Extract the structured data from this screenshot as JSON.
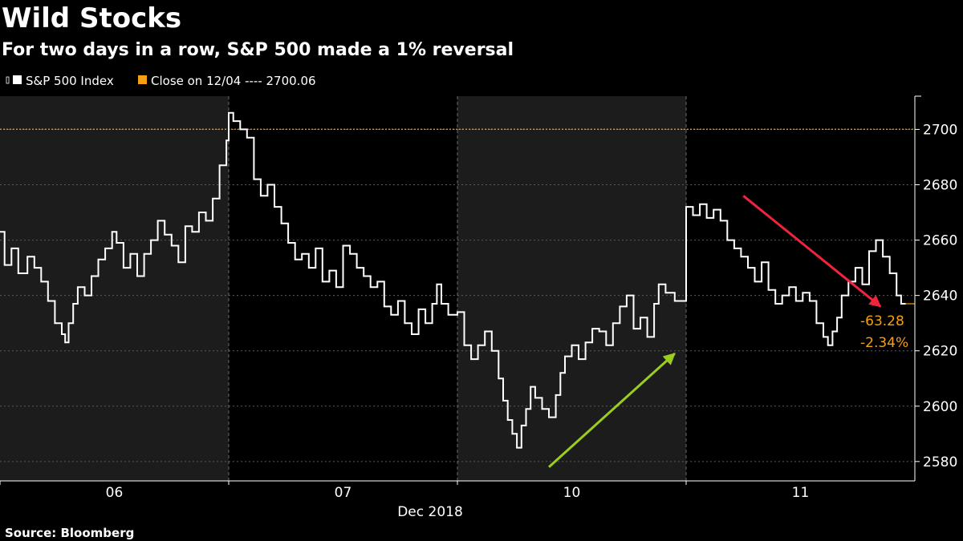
{
  "chart_data": {
    "type": "line",
    "title": "Wild Stocks",
    "subtitle": "For two days in a row, S&P 500 made a 1% reversal",
    "legend": [
      {
        "label": "S&P 500 Index",
        "color": "#ffffff"
      },
      {
        "label": "Close on 12/04 ---- 2700.06",
        "color": "#f5a012"
      }
    ],
    "reference_line": {
      "label": "Close on 12/04",
      "value": 2700.06,
      "color": "#f5a012"
    },
    "x_days": [
      "06",
      "07",
      "10",
      "11"
    ],
    "x_month_label": "Dec 2018",
    "x_range": [
      0,
      4
    ],
    "ylim": [
      2573,
      2712
    ],
    "y_ticks": [
      2580,
      2600,
      2620,
      2640,
      2660,
      2680,
      2700
    ],
    "series": [
      {
        "name": "S&P 500 Index",
        "color": "#ffffff",
        "points": [
          [
            0.0,
            2663
          ],
          [
            0.02,
            2651
          ],
          [
            0.05,
            2657
          ],
          [
            0.08,
            2648
          ],
          [
            0.12,
            2654
          ],
          [
            0.15,
            2650
          ],
          [
            0.18,
            2645
          ],
          [
            0.21,
            2638
          ],
          [
            0.24,
            2630
          ],
          [
            0.27,
            2626
          ],
          [
            0.285,
            2623
          ],
          [
            0.3,
            2630
          ],
          [
            0.32,
            2637
          ],
          [
            0.34,
            2643
          ],
          [
            0.37,
            2640
          ],
          [
            0.4,
            2647
          ],
          [
            0.43,
            2653
          ],
          [
            0.46,
            2657
          ],
          [
            0.49,
            2663
          ],
          [
            0.51,
            2659
          ],
          [
            0.54,
            2650
          ],
          [
            0.57,
            2655
          ],
          [
            0.6,
            2647
          ],
          [
            0.63,
            2655
          ],
          [
            0.66,
            2660
          ],
          [
            0.69,
            2667
          ],
          [
            0.72,
            2662
          ],
          [
            0.75,
            2658
          ],
          [
            0.78,
            2652
          ],
          [
            0.81,
            2665
          ],
          [
            0.84,
            2663
          ],
          [
            0.87,
            2670
          ],
          [
            0.9,
            2667
          ],
          [
            0.93,
            2675
          ],
          [
            0.96,
            2687
          ],
          [
            0.99,
            2696
          ],
          [
            1.0,
            2706
          ],
          [
            1.02,
            2703
          ],
          [
            1.05,
            2700
          ],
          [
            1.08,
            2697
          ],
          [
            1.11,
            2682
          ],
          [
            1.14,
            2676
          ],
          [
            1.17,
            2680
          ],
          [
            1.2,
            2672
          ],
          [
            1.23,
            2666
          ],
          [
            1.26,
            2659
          ],
          [
            1.29,
            2653
          ],
          [
            1.32,
            2655
          ],
          [
            1.35,
            2650
          ],
          [
            1.38,
            2657
          ],
          [
            1.41,
            2645
          ],
          [
            1.44,
            2649
          ],
          [
            1.47,
            2643
          ],
          [
            1.5,
            2658
          ],
          [
            1.53,
            2655
          ],
          [
            1.56,
            2650
          ],
          [
            1.59,
            2647
          ],
          [
            1.62,
            2643
          ],
          [
            1.65,
            2645
          ],
          [
            1.68,
            2636
          ],
          [
            1.71,
            2633
          ],
          [
            1.74,
            2638
          ],
          [
            1.77,
            2630
          ],
          [
            1.8,
            2626
          ],
          [
            1.83,
            2635
          ],
          [
            1.86,
            2630
          ],
          [
            1.89,
            2637
          ],
          [
            1.91,
            2644
          ],
          [
            1.93,
            2637
          ],
          [
            1.96,
            2633
          ],
          [
            2.0,
            2634
          ],
          [
            2.03,
            2622
          ],
          [
            2.06,
            2617
          ],
          [
            2.09,
            2622
          ],
          [
            2.12,
            2627
          ],
          [
            2.15,
            2620
          ],
          [
            2.18,
            2610
          ],
          [
            2.2,
            2602
          ],
          [
            2.22,
            2595
          ],
          [
            2.24,
            2590
          ],
          [
            2.26,
            2585
          ],
          [
            2.28,
            2593
          ],
          [
            2.3,
            2599
          ],
          [
            2.32,
            2607
          ],
          [
            2.34,
            2603
          ],
          [
            2.37,
            2599
          ],
          [
            2.4,
            2596
          ],
          [
            2.43,
            2604
          ],
          [
            2.45,
            2612
          ],
          [
            2.47,
            2618
          ],
          [
            2.5,
            2622
          ],
          [
            2.53,
            2617
          ],
          [
            2.56,
            2623
          ],
          [
            2.59,
            2628
          ],
          [
            2.62,
            2627
          ],
          [
            2.65,
            2622
          ],
          [
            2.68,
            2630
          ],
          [
            2.71,
            2636
          ],
          [
            2.74,
            2640
          ],
          [
            2.77,
            2628
          ],
          [
            2.8,
            2632
          ],
          [
            2.83,
            2625
          ],
          [
            2.86,
            2637
          ],
          [
            2.88,
            2644
          ],
          [
            2.91,
            2641
          ],
          [
            2.95,
            2638
          ],
          [
            3.0,
            2672
          ],
          [
            3.03,
            2669
          ],
          [
            3.06,
            2673
          ],
          [
            3.09,
            2668
          ],
          [
            3.12,
            2671
          ],
          [
            3.15,
            2667
          ],
          [
            3.18,
            2660
          ],
          [
            3.21,
            2657
          ],
          [
            3.24,
            2654
          ],
          [
            3.27,
            2650
          ],
          [
            3.3,
            2645
          ],
          [
            3.33,
            2652
          ],
          [
            3.36,
            2642
          ],
          [
            3.39,
            2637
          ],
          [
            3.42,
            2640
          ],
          [
            3.45,
            2643
          ],
          [
            3.48,
            2638
          ],
          [
            3.51,
            2641
          ],
          [
            3.54,
            2638
          ],
          [
            3.57,
            2630
          ],
          [
            3.6,
            2625
          ],
          [
            3.62,
            2622
          ],
          [
            3.64,
            2627
          ],
          [
            3.66,
            2632
          ],
          [
            3.68,
            2640
          ],
          [
            3.71,
            2645
          ],
          [
            3.74,
            2650
          ],
          [
            3.77,
            2644
          ],
          [
            3.8,
            2656
          ],
          [
            3.83,
            2660
          ],
          [
            3.86,
            2654
          ],
          [
            3.89,
            2648
          ],
          [
            3.92,
            2640
          ],
          [
            3.94,
            2637
          ],
          [
            3.96,
            2637
          ]
        ]
      }
    ],
    "last_change": {
      "abs": "-63.28",
      "pct": "-2.34%"
    },
    "annotations": [
      {
        "type": "arrow",
        "color": "#9acd1e",
        "from": [
          2.4,
          2578
        ],
        "to": [
          2.95,
          2619
        ]
      },
      {
        "type": "arrow",
        "color": "#f0243c",
        "from": [
          3.25,
          2676
        ],
        "to": [
          3.85,
          2636
        ]
      }
    ]
  },
  "source": "Source: Bloomberg"
}
